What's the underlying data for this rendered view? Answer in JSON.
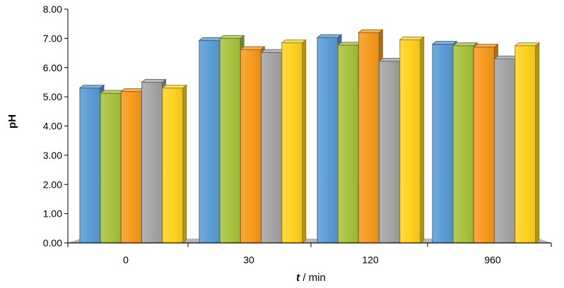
{
  "chart_data": {
    "type": "bar",
    "title": "",
    "xlabel_var": "t",
    "xlabel_unit": " / min",
    "ylabel": "pH",
    "ylim": [
      0,
      8
    ],
    "yticks": [
      "0.00",
      "1.00",
      "2.00",
      "3.00",
      "4.00",
      "5.00",
      "6.00",
      "7.00",
      "8.00"
    ],
    "categories": [
      "0",
      "30",
      "120",
      "960"
    ],
    "grid": false,
    "legend": "none",
    "series": [
      {
        "values": [
          5.3,
          6.93,
          7.03,
          6.8
        ],
        "color": "#5b9bd5"
      },
      {
        "values": [
          5.12,
          7.0,
          6.77,
          6.75
        ],
        "color": "#a9c23f"
      },
      {
        "values": [
          5.18,
          6.62,
          7.2,
          6.7
        ],
        "color": "#f79a1e"
      },
      {
        "values": [
          5.5,
          6.52,
          6.22,
          6.3
        ],
        "color": "#a5a5a5"
      },
      {
        "values": [
          5.3,
          6.85,
          6.95,
          6.75
        ],
        "color": "#ffd21f"
      }
    ]
  }
}
